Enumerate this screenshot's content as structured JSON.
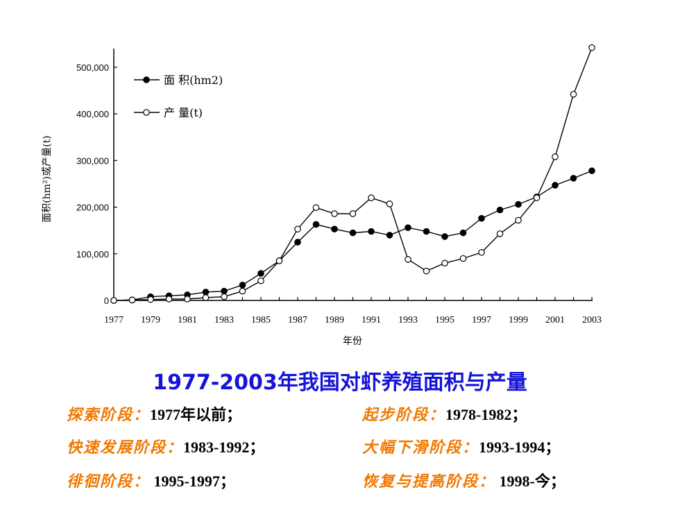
{
  "chart_data": {
    "type": "line",
    "ylabel": "面积(hm²)或产量(t)",
    "xlabel": "年份",
    "ylim": [
      0,
      540000
    ],
    "yticks": [
      0,
      100000,
      200000,
      300000,
      400000,
      500000
    ],
    "ytick_labels": [
      "0",
      "100,000",
      "200,000",
      "300,000",
      "400,000",
      "500,000"
    ],
    "xticks": [
      1977,
      1979,
      1981,
      1983,
      1985,
      1987,
      1989,
      1991,
      1993,
      1995,
      1997,
      1999,
      2001,
      2003
    ],
    "x": [
      1977,
      1978,
      1979,
      1980,
      1981,
      1982,
      1983,
      1984,
      1985,
      1986,
      1987,
      1988,
      1989,
      1990,
      1991,
      1992,
      1993,
      1994,
      1995,
      1996,
      1997,
      1998,
      1999,
      2000,
      2001,
      2002,
      2003
    ],
    "series": [
      {
        "name": "面 积(hm2)",
        "marker": "filled-circle",
        "values": [
          0,
          1000,
          8000,
          10000,
          12000,
          18000,
          20000,
          33000,
          58000,
          85000,
          125000,
          163000,
          153000,
          145000,
          148000,
          140000,
          156000,
          148000,
          137000,
          145000,
          176000,
          194000,
          206000,
          222000,
          247000,
          262000,
          278000
        ]
      },
      {
        "name": "产 量(t)",
        "marker": "open-circle",
        "values": [
          0,
          1000,
          2000,
          3000,
          3000,
          6000,
          8000,
          20000,
          42000,
          85000,
          153000,
          199000,
          186000,
          186000,
          220000,
          207000,
          88000,
          63000,
          80000,
          90000,
          103000,
          143000,
          172000,
          220000,
          308000,
          442000,
          542000
        ]
      }
    ],
    "legend_position": "top-left",
    "grid": false
  },
  "caption": {
    "title": "1977-2003年我国对虾养殖面积与产量"
  },
  "stages": [
    {
      "name": "探索阶段：",
      "period": "1977年以前；"
    },
    {
      "name": "起步阶段：",
      "period": "1978-1982；"
    },
    {
      "name": "快速发展阶段：",
      "period": "1983-1992；"
    },
    {
      "name": "大幅下滑阶段：",
      "period": "1993-1994；"
    },
    {
      "name": "徘徊阶段：",
      "period": " 1995-1997；"
    },
    {
      "name": "恢复与提高阶段：",
      "period": " 1998-今；"
    }
  ]
}
